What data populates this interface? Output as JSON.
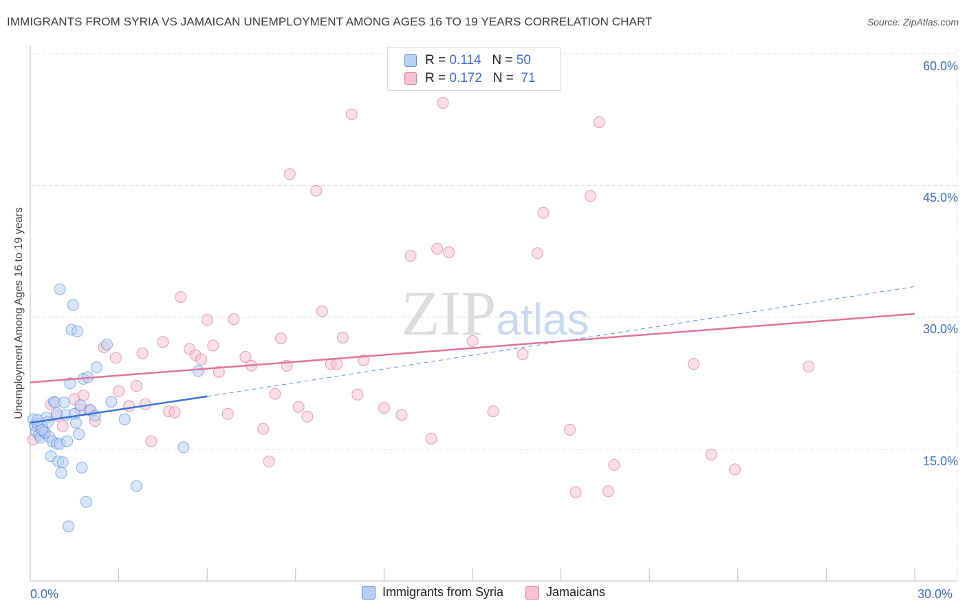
{
  "header": {
    "title": "IMMIGRANTS FROM SYRIA VS JAMAICAN UNEMPLOYMENT AMONG AGES 16 TO 19 YEARS CORRELATION CHART",
    "source": "Source: ZipAtlas.com"
  },
  "watermark": "ZIPatlas",
  "colors": {
    "syria": "#5b8fdb",
    "syria_fill": "#b9d0f4",
    "jamaica": "#e07399",
    "jamaica_fill": "#f6c3d5",
    "tick_text": "#3b6fcc",
    "grid": "#e0e0e0"
  },
  "legend_top": {
    "rows": [
      {
        "r_label": "R =",
        "r_value": "0.114",
        "n_label": "N =",
        "n_value": "50"
      },
      {
        "r_label": "R =",
        "r_value": "0.172",
        "n_label": "N =",
        "n_value": "71"
      }
    ]
  },
  "legend_bottom": {
    "items": [
      "Immigrants from Syria",
      "Jamaicans"
    ]
  },
  "chart_data": {
    "type": "scatter",
    "title": "IMMIGRANTS FROM SYRIA VS JAMAICAN UNEMPLOYMENT AMONG AGES 16 TO 19 YEARS CORRELATION CHART",
    "xlabel": "",
    "ylabel": "Unemployment Among Ages 16 to 19 years",
    "xlim": [
      0,
      30
    ],
    "ylim": [
      0,
      60
    ],
    "x_tick_labels": [
      "0.0%",
      "30.0%"
    ],
    "y_tick_labels": [
      "15.0%",
      "30.0%",
      "45.0%",
      "60.0%"
    ],
    "y_ticks": [
      15,
      30,
      45,
      60
    ],
    "grid": true,
    "series": [
      {
        "name": "Immigrants from Syria",
        "r": 0.114,
        "n": 50,
        "trend": {
          "x": [
            0,
            6
          ],
          "y": [
            18.0,
            21.0
          ],
          "extended_to": [
            30,
            33.5
          ]
        },
        "points": [
          [
            0.1,
            18.4
          ],
          [
            0.15,
            17.7
          ],
          [
            0.2,
            17.0
          ],
          [
            0.25,
            17.9
          ],
          [
            0.3,
            16.6
          ],
          [
            0.35,
            16.3
          ],
          [
            0.4,
            17.6
          ],
          [
            0.45,
            17.0
          ],
          [
            0.5,
            16.9
          ],
          [
            0.55,
            18.6
          ],
          [
            0.6,
            18.1
          ],
          [
            0.65,
            16.4
          ],
          [
            0.7,
            14.2
          ],
          [
            0.75,
            15.9
          ],
          [
            0.8,
            20.4
          ],
          [
            0.85,
            20.3
          ],
          [
            0.9,
            15.6
          ],
          [
            0.95,
            13.6
          ],
          [
            1.0,
            15.6
          ],
          [
            1.05,
            12.3
          ],
          [
            1.1,
            13.5
          ],
          [
            1.15,
            20.3
          ],
          [
            1.2,
            18.9
          ],
          [
            1.25,
            15.9
          ],
          [
            1.3,
            6.2
          ],
          [
            1.35,
            22.5
          ],
          [
            1.4,
            28.6
          ],
          [
            1.45,
            31.4
          ],
          [
            1.5,
            19.0
          ],
          [
            1.55,
            18.0
          ],
          [
            1.6,
            28.4
          ],
          [
            1.65,
            16.7
          ],
          [
            1.7,
            20.0
          ],
          [
            1.75,
            12.9
          ],
          [
            1.8,
            23.0
          ],
          [
            1.9,
            9.0
          ],
          [
            1.95,
            23.2
          ],
          [
            2.05,
            19.4
          ],
          [
            2.2,
            18.8
          ],
          [
            2.25,
            24.3
          ],
          [
            2.6,
            26.9
          ],
          [
            2.75,
            20.4
          ],
          [
            3.2,
            18.4
          ],
          [
            3.6,
            10.8
          ],
          [
            5.2,
            15.2
          ],
          [
            5.7,
            23.9
          ],
          [
            1.0,
            33.2
          ],
          [
            0.9,
            19.1
          ],
          [
            0.25,
            18.3
          ],
          [
            0.4,
            17.2
          ]
        ]
      },
      {
        "name": "Jamaicans",
        "r": 0.172,
        "n": 71,
        "trend": {
          "x": [
            0,
            30
          ],
          "y": [
            22.6,
            30.4
          ]
        },
        "points": [
          [
            0.1,
            16.1
          ],
          [
            0.3,
            17.5
          ],
          [
            0.5,
            16.8
          ],
          [
            0.7,
            20.1
          ],
          [
            0.9,
            18.8
          ],
          [
            1.1,
            17.6
          ],
          [
            1.5,
            20.7
          ],
          [
            1.7,
            19.5
          ],
          [
            1.8,
            21.1
          ],
          [
            2.0,
            19.5
          ],
          [
            2.2,
            18.2
          ],
          [
            2.5,
            26.6
          ],
          [
            2.9,
            25.4
          ],
          [
            3.0,
            21.6
          ],
          [
            3.35,
            19.9
          ],
          [
            3.6,
            22.2
          ],
          [
            3.8,
            25.9
          ],
          [
            3.9,
            20.1
          ],
          [
            4.1,
            15.9
          ],
          [
            4.5,
            27.2
          ],
          [
            4.7,
            19.3
          ],
          [
            4.9,
            19.2
          ],
          [
            5.1,
            32.3
          ],
          [
            5.4,
            26.4
          ],
          [
            5.6,
            25.7
          ],
          [
            5.8,
            25.2
          ],
          [
            6.0,
            29.7
          ],
          [
            6.2,
            26.8
          ],
          [
            6.4,
            23.8
          ],
          [
            6.7,
            19.0
          ],
          [
            6.9,
            29.8
          ],
          [
            7.3,
            25.5
          ],
          [
            7.5,
            24.5
          ],
          [
            7.9,
            17.3
          ],
          [
            8.1,
            13.6
          ],
          [
            8.3,
            21.3
          ],
          [
            8.5,
            27.6
          ],
          [
            8.7,
            24.5
          ],
          [
            8.8,
            46.3
          ],
          [
            9.1,
            19.8
          ],
          [
            9.4,
            18.7
          ],
          [
            9.7,
            44.4
          ],
          [
            9.9,
            30.7
          ],
          [
            10.2,
            24.7
          ],
          [
            10.4,
            24.7
          ],
          [
            10.6,
            27.7
          ],
          [
            10.9,
            53.1
          ],
          [
            11.1,
            21.2
          ],
          [
            11.3,
            25.1
          ],
          [
            12.0,
            19.7
          ],
          [
            12.6,
            18.9
          ],
          [
            12.9,
            37.0
          ],
          [
            13.6,
            16.2
          ],
          [
            13.8,
            37.8
          ],
          [
            14.0,
            54.4
          ],
          [
            14.2,
            37.4
          ],
          [
            15.0,
            27.3
          ],
          [
            15.7,
            19.3
          ],
          [
            16.7,
            25.8
          ],
          [
            17.2,
            37.3
          ],
          [
            17.4,
            41.9
          ],
          [
            18.3,
            17.2
          ],
          [
            18.5,
            10.1
          ],
          [
            19.0,
            43.8
          ],
          [
            19.3,
            52.2
          ],
          [
            19.6,
            10.2
          ],
          [
            19.8,
            13.2
          ],
          [
            22.5,
            24.7
          ],
          [
            23.1,
            14.4
          ],
          [
            23.9,
            12.7
          ],
          [
            26.4,
            24.4
          ]
        ]
      }
    ]
  }
}
